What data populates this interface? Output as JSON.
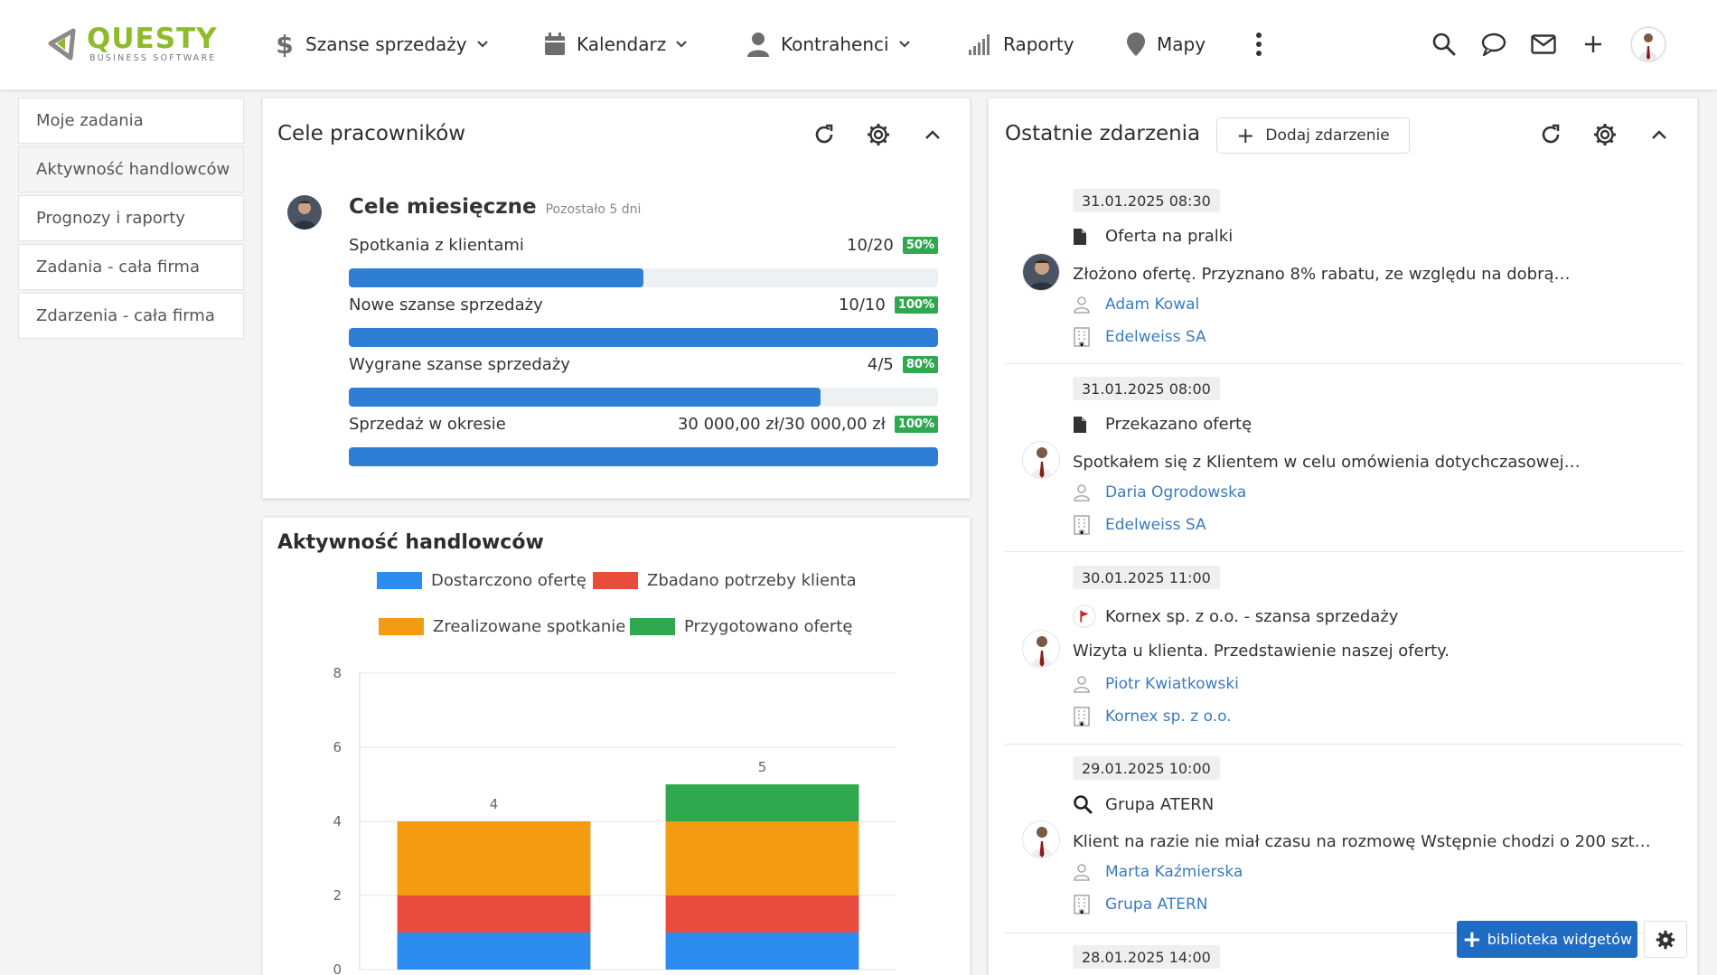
{
  "brand": {
    "name": "QUESTY",
    "tagline": "BUSINESS SOFTWARE",
    "color": "#8dbb2a"
  },
  "nav": [
    {
      "label": "Szanse sprzedaży",
      "icon": "dollar-icon",
      "has_dropdown": true
    },
    {
      "label": "Kalendarz",
      "icon": "calendar-icon",
      "has_dropdown": true
    },
    {
      "label": "Kontrahenci",
      "icon": "person-icon",
      "has_dropdown": true
    },
    {
      "label": "Raporty",
      "icon": "signal-bars-icon",
      "has_dropdown": false
    },
    {
      "label": "Mapy",
      "icon": "map-pin-icon",
      "has_dropdown": false
    }
  ],
  "header_icons": [
    "more-vertical-icon",
    "search-icon",
    "chat-icon",
    "mail-icon",
    "plus-icon",
    "user-avatar"
  ],
  "sidebar": {
    "items": [
      {
        "label": "Moje zadania"
      },
      {
        "label": "Aktywność handlowców"
      },
      {
        "label": "Prognozy i raporty"
      },
      {
        "label": "Zadania - cała firma"
      },
      {
        "label": "Zdarzenia - cała firma"
      }
    ]
  },
  "goals_panel": {
    "title": "Cele pracowników",
    "heading": "Cele miesięczne",
    "subheading": "Pozostało 5 dni",
    "rows": [
      {
        "name": "Spotkania z klientami",
        "value": "10/20",
        "percent_label": "50%",
        "progress": 0.5
      },
      {
        "name": "Nowe szanse sprzedaży",
        "value": "10/10",
        "percent_label": "100%",
        "progress": 1.0
      },
      {
        "name": "Wygrane szanse sprzedaży",
        "value": "4/5",
        "percent_label": "80%",
        "progress": 0.8
      },
      {
        "name": "Sprzedaż w okresie",
        "value": "30 000,00 zł/30 000,00 zł",
        "percent_label": "100%",
        "progress": 1.0
      }
    ]
  },
  "activity_panel": {
    "title": "Aktywność handlowców"
  },
  "chart_data": {
    "type": "bar",
    "stacked": true,
    "categories": [
      "",
      ""
    ],
    "series": [
      {
        "name": "Dostarczono ofertę",
        "color": "#2d8cf0",
        "values": [
          1,
          1
        ]
      },
      {
        "name": "Zbadano potrzeby klienta",
        "color": "#e84c3d",
        "values": [
          1,
          1
        ]
      },
      {
        "name": "Zrealizowane spotkanie",
        "color": "#f39c12",
        "values": [
          2,
          2
        ]
      },
      {
        "name": "Przygotowano ofertę",
        "color": "#2fa84f",
        "values": [
          0,
          1
        ]
      }
    ],
    "totals": [
      "4",
      "5"
    ],
    "yticks": [
      "0",
      "2",
      "4",
      "6",
      "8"
    ],
    "ylim": [
      0,
      8
    ],
    "grid": true,
    "legend_position": "top"
  },
  "events_panel": {
    "title": "Ostatnie zdarzenia",
    "add_label": "Dodaj zdarzenie",
    "events": [
      {
        "date": "31.01.2025 08:30",
        "type_icon": "document-icon",
        "title": "Oferta na pralki",
        "description": "Złożono ofertę. Przyznano 8% rabatu, ze względu na dobrą…",
        "person": "Adam Kowal",
        "company": "Edelweiss SA",
        "avatar": "avatar-dark-suit"
      },
      {
        "date": "31.01.2025 08:00",
        "type_icon": "document-icon",
        "title": "Przekazano ofertę",
        "description": "Spotkałem się z Klientem w celu omówienia dotychczasowej…",
        "person": "Daria Ogrodowska",
        "company": "Edelweiss SA",
        "avatar": "avatar-tie"
      },
      {
        "date": "30.01.2025 11:00",
        "type_icon": "flag-icon",
        "title": "Kornex sp. z o.o. - szansa sprzedaży",
        "description": "Wizyta u klienta. Przedstawienie naszej oferty.",
        "person": "Piotr Kwiatkowski",
        "company": "Kornex sp. z o.o.",
        "avatar": "avatar-tie"
      },
      {
        "date": "29.01.2025 10:00",
        "type_icon": "search-icon",
        "title": "Grupa ATERN",
        "description": "Klient na razie nie miał czasu na rozmowę Wstępnie chodzi o 200 szt…",
        "person": "Marta Kaźmierska",
        "company": "Grupa ATERN",
        "avatar": "avatar-tie"
      },
      {
        "date": "28.01.2025 14:00"
      }
    ]
  },
  "footer_buttons": {
    "library_label": "biblioteka widgetów"
  }
}
